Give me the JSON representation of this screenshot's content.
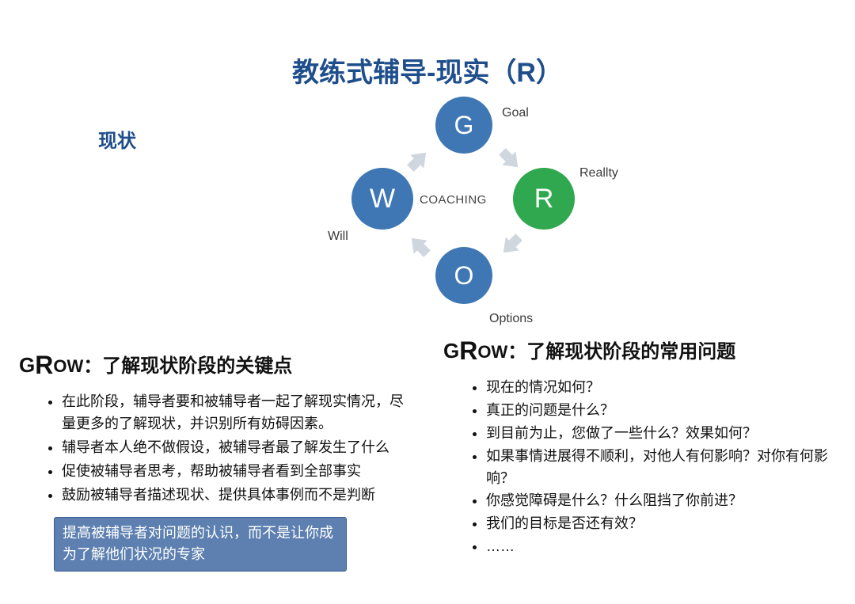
{
  "title": "教练式辅导-现实（R）",
  "subtitle": "现状",
  "diagram": {
    "center_label": "COACHING",
    "nodes": {
      "g": {
        "letter": "G",
        "label": "Goal",
        "color": "#3f77b5",
        "text_color": "#ffffff"
      },
      "r": {
        "letter": "R",
        "label": "Reallty",
        "color": "#2fa84f",
        "text_color": "#ffffff"
      },
      "o": {
        "letter": "O",
        "label": "Options",
        "color": "#3f77b5",
        "text_color": "#ffffff"
      },
      "w": {
        "letter": "W",
        "label": "Will",
        "color": "#3f77b5",
        "text_color": "#ffffff"
      }
    },
    "arrow_color": "#cfd6dd",
    "node_label_color": "#3a3a3a",
    "center_label_color": "#444444"
  },
  "left": {
    "heading_prefix_g": "G",
    "heading_prefix_r": "R",
    "heading_prefix_ow": "OW",
    "heading_rest": "：了解现状阶段的关键点",
    "bullets": [
      "在此阶段，辅导者要和被辅导者一起了解现实情况，尽量更多的了解现状，并识别所有妨碍因素。",
      "辅导者本人绝不做假设，被辅导者最了解发生了什么",
      "促使被辅导者思考，帮助被辅导者看到全部事实",
      "鼓励被辅导者描述现状、提供具体事例而不是判断"
    ],
    "callout": "提高被辅导者对问题的认识，而不是让你成为了解他们状况的专家",
    "callout_bg": "#5d80b0",
    "callout_border": "#3b5f90",
    "callout_text_color": "#ffffff"
  },
  "right": {
    "heading_prefix_g": "G",
    "heading_prefix_r": "R",
    "heading_prefix_ow": "OW",
    "heading_rest": "：了解现状阶段的常用问题",
    "bullets": [
      "现在的情况如何？",
      "真正的问题是什么？",
      "到目前为止，您做了一些什么？效果如何？",
      "如果事情进展得不顺利，对他人有何影响？对你有何影响？",
      "你感觉障碍是什么？什么阻挡了你前进？",
      "我们的目标是否还有效？",
      "……"
    ]
  },
  "colors": {
    "title": "#1f4e8c",
    "body_text": "#111111",
    "background": "#ffffff"
  },
  "typography": {
    "title_fontsize": 34,
    "subtitle_fontsize": 24,
    "heading_fontsize": 24,
    "bullet_fontsize": 18,
    "node_letter_fontsize": 32,
    "node_label_fontsize": 16,
    "callout_fontsize": 18
  }
}
